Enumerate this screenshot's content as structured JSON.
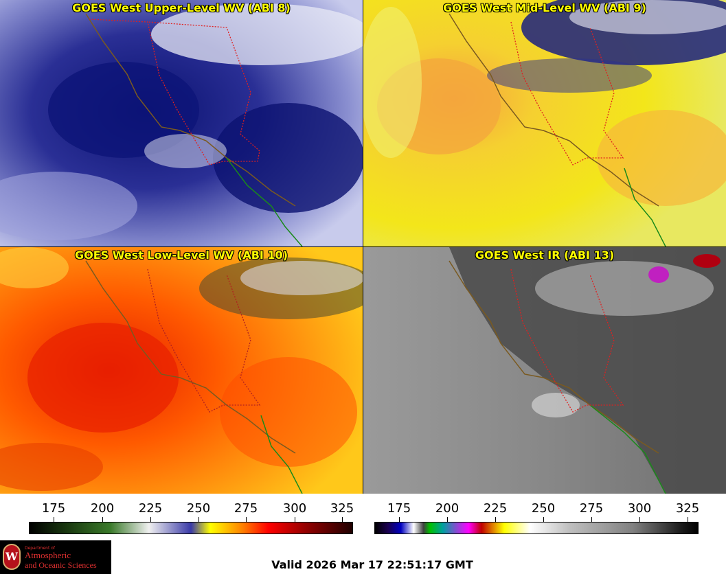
{
  "panels": [
    {
      "title": "GOES West Upper-Level WV (ABI 8)",
      "palette": "blue",
      "base_color": "#4a4fb0",
      "dark_color": "#0b1270",
      "light_color": "#b9bde6"
    },
    {
      "title": "GOES West Mid-Level WV (ABI 9)",
      "palette": "yellow",
      "base_color": "#f3e21a",
      "dark_color": "#f2a93a",
      "light_color": "#f7f06a"
    },
    {
      "title": "GOES West Low-Level WV (ABI 10)",
      "palette": "orange",
      "base_color": "#ff6a00",
      "dark_color": "#e81f00",
      "light_color": "#ffc21a"
    },
    {
      "title": "GOES West IR (ABI 13)",
      "palette": "gray",
      "base_color": "#8a8a8a",
      "dark_color": "#3a3a3a",
      "light_color": "#a8a8a8"
    }
  ],
  "scales": [
    {
      "name": "wv-scale",
      "ticks": [
        "175",
        "200",
        "225",
        "250",
        "275",
        "300",
        "325"
      ]
    },
    {
      "name": "ir-scale",
      "ticks": [
        "175",
        "200",
        "225",
        "250",
        "275",
        "300",
        "325"
      ]
    }
  ],
  "logo": {
    "line1": "Department of",
    "line2": "Atmospheric",
    "line3": "and Oceanic Sciences",
    "seal": "W"
  },
  "valid_text": "Valid 2026 Mar 17 22:51:17 GMT"
}
